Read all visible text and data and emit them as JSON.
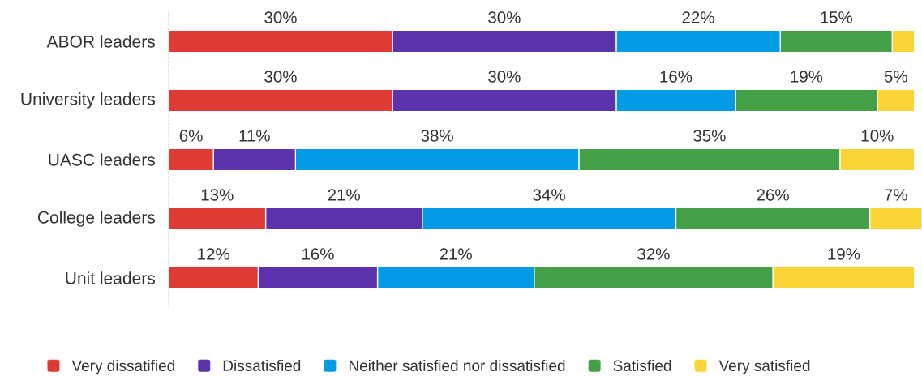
{
  "chart_data": {
    "type": "bar",
    "orientation": "horizontal",
    "stacked": true,
    "categories": [
      "ABOR leaders",
      "University leaders",
      "UASC leaders",
      "College leaders",
      "Unit leaders"
    ],
    "series": [
      {
        "name": "Very dissatified",
        "color": "#e03a35",
        "values": [
          30,
          30,
          6,
          13,
          12
        ],
        "value_labels": [
          "30%",
          "30%",
          "6%",
          "13%",
          "12%"
        ]
      },
      {
        "name": "Dissatisfied",
        "color": "#5c33ad",
        "values": [
          30,
          30,
          11,
          21,
          16
        ],
        "value_labels": [
          "30%",
          "30%",
          "11%",
          "21%",
          "16%"
        ]
      },
      {
        "name": "Neither satisfied nor dissatisfied",
        "color": "#039be5",
        "values": [
          22,
          16,
          38,
          34,
          21
        ],
        "value_labels": [
          "22%",
          "16%",
          "38%",
          "34%",
          "21%"
        ]
      },
      {
        "name": "Satisfied",
        "color": "#43a047",
        "values": [
          15,
          19,
          35,
          26,
          32
        ],
        "value_labels": [
          "15%",
          "19%",
          "35%",
          "26%",
          "32%"
        ]
      },
      {
        "name": "Very satisfied",
        "color": "#fbd535",
        "values": [
          3,
          5,
          10,
          7,
          19
        ],
        "value_labels": [
          null,
          "5%",
          "10%",
          "7%",
          "19%"
        ]
      }
    ],
    "legend": "bottom"
  }
}
